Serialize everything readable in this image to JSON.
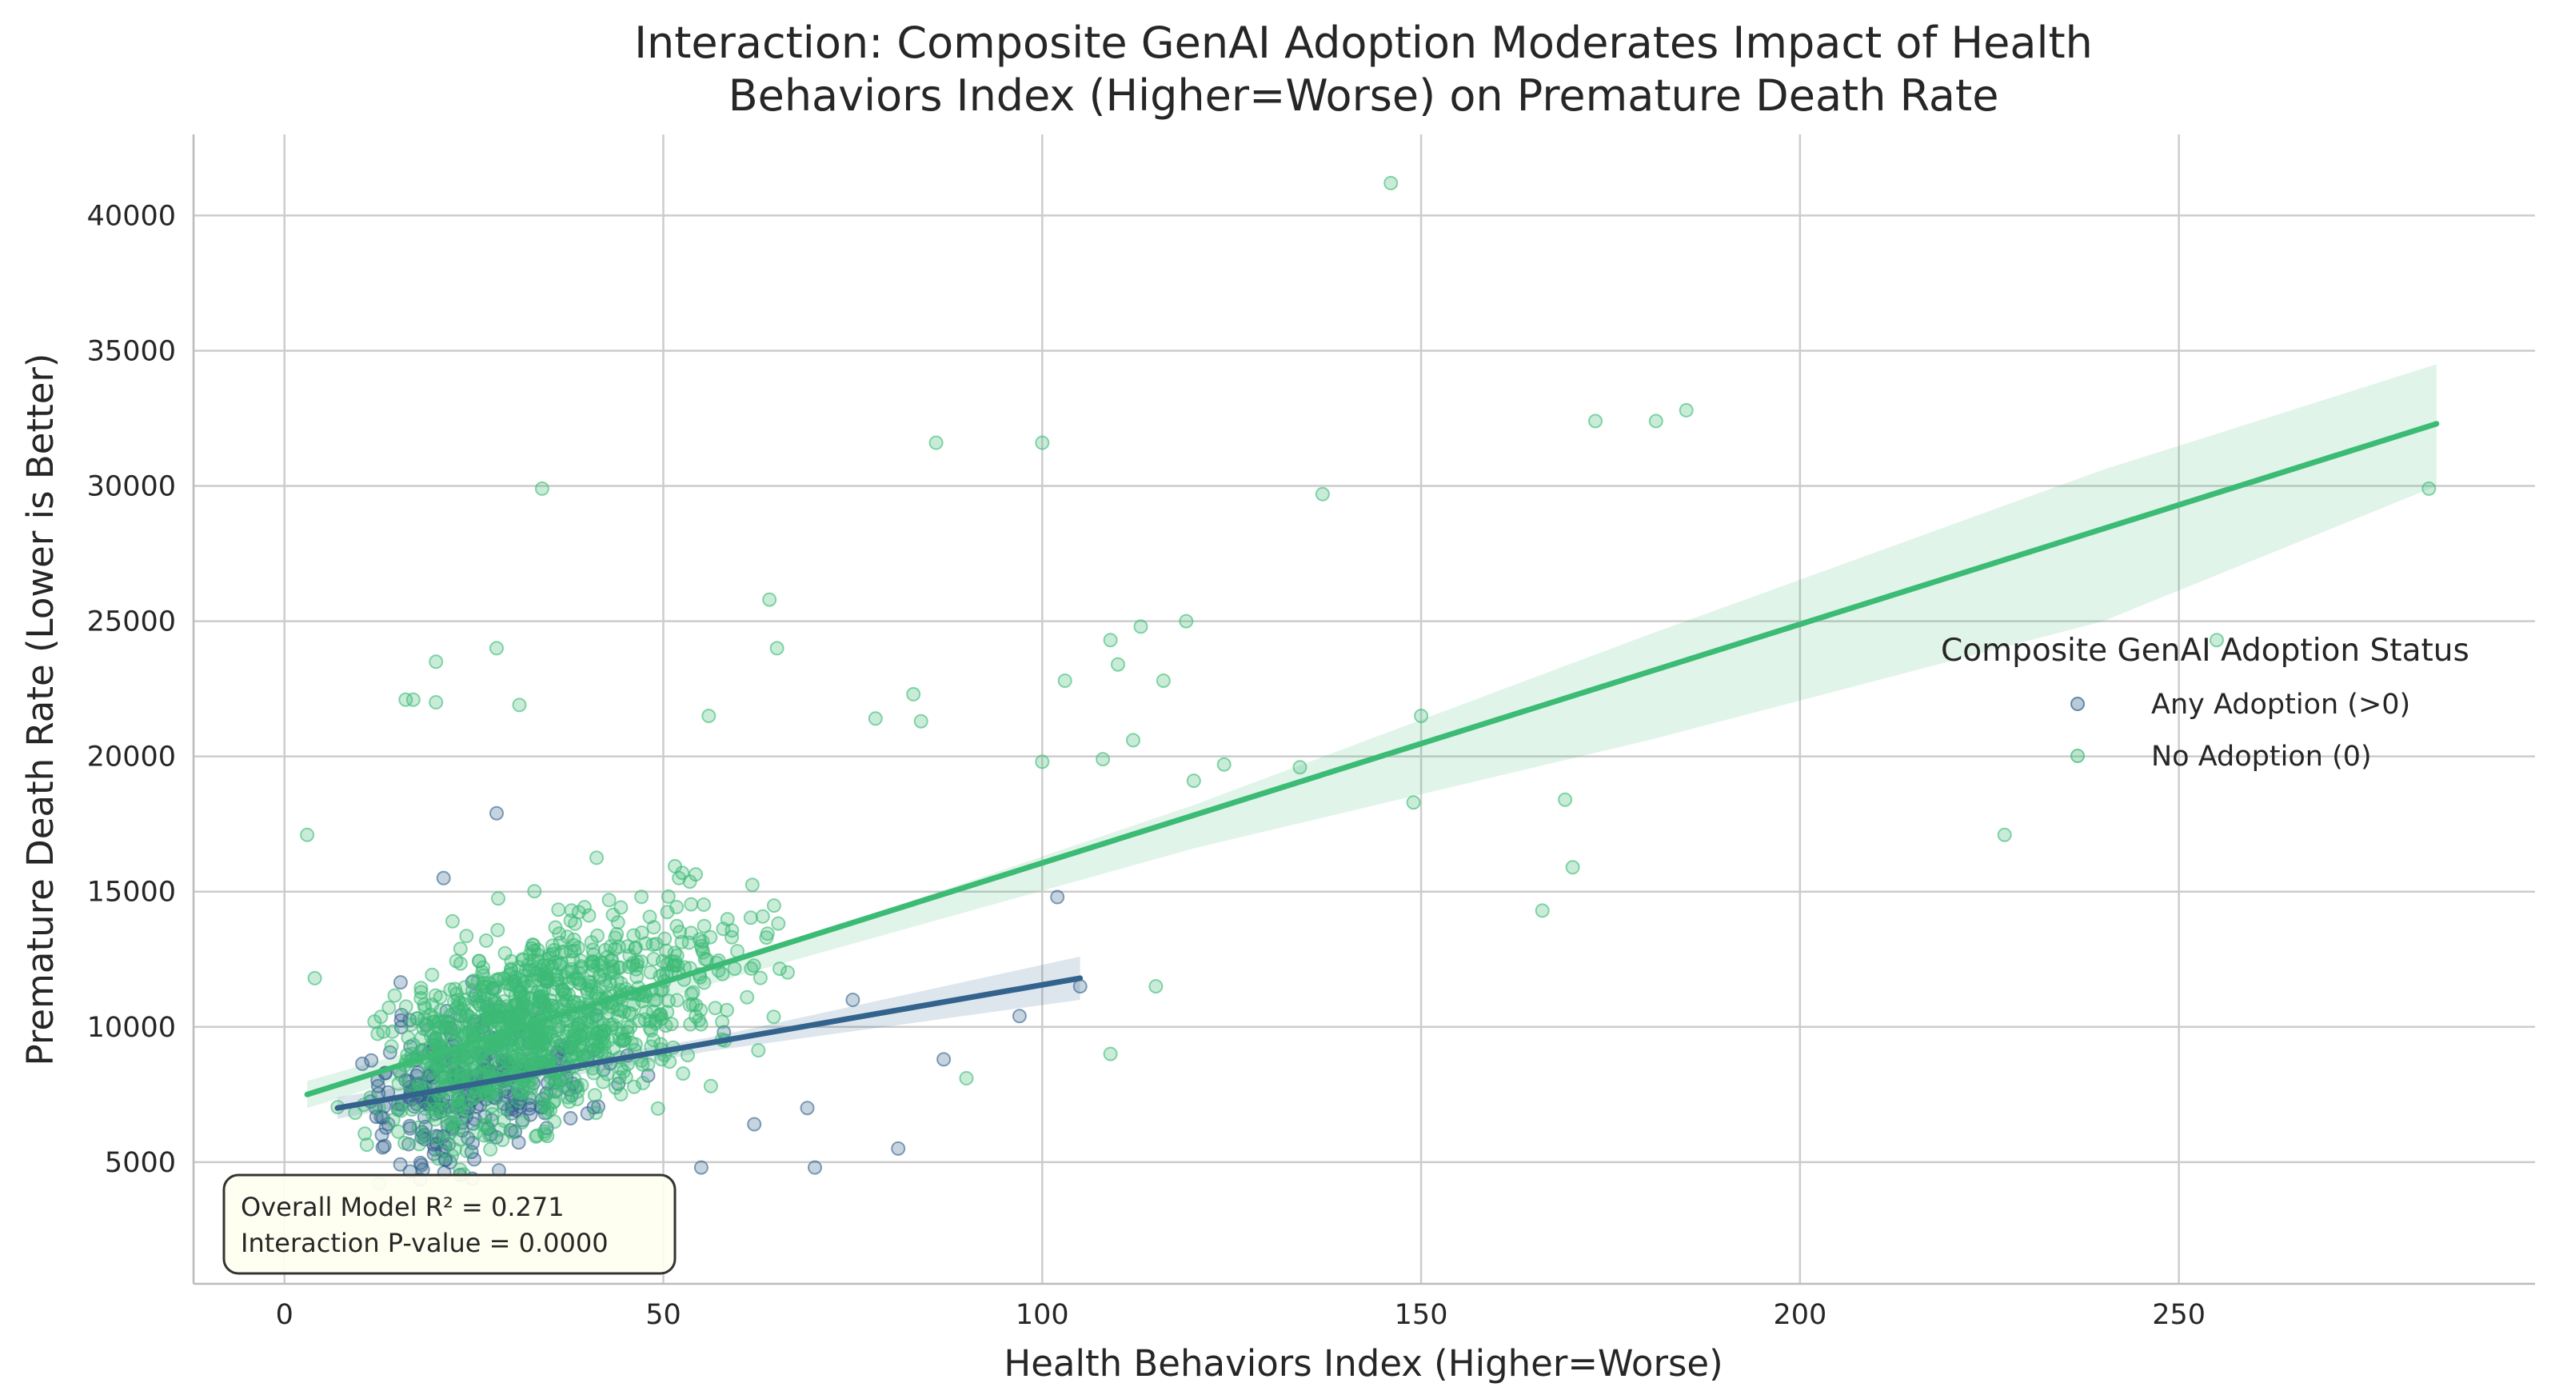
{
  "chart_data": {
    "type": "scatter",
    "title_lines": [
      "Interaction: Composite GenAI Adoption Moderates Impact of Health",
      "Behaviors Index (Higher=Worse) on Premature Death Rate"
    ],
    "xlabel": "Health Behaviors Index (Higher=Worse)",
    "ylabel": "Premature Death Rate (Lower is Better)",
    "xlim": [
      -12,
      297
    ],
    "ylim": [
      500,
      43000
    ],
    "x_ticks": [
      0,
      50,
      100,
      150,
      200,
      250
    ],
    "y_ticks": [
      5000,
      10000,
      15000,
      20000,
      25000,
      30000,
      35000,
      40000
    ],
    "grid": true,
    "legend": {
      "title": "Composite GenAI Adoption Status",
      "placement": "center-right",
      "entries": [
        "Any Adoption (>0)",
        "No Adoption (0)"
      ]
    },
    "annotation": [
      "Overall Model R² = 0.271",
      "Interaction P-value = 0.0000"
    ],
    "colors": {
      "any_adoption": "#33638d",
      "no_adoption": "#3cbb75"
    },
    "series": [
      {
        "name": "Any Adoption (>0)",
        "color": "#33638d",
        "fit_line": {
          "x": [
            7,
            105
          ],
          "y": [
            7000,
            11800
          ]
        },
        "ci_band": {
          "x": [
            7,
            56,
            105
          ],
          "upper": [
            7400,
            9600,
            12600
          ],
          "lower": [
            6600,
            9100,
            11000
          ]
        },
        "notable_points": [
          [
            28,
            17900
          ],
          [
            21,
            15500
          ],
          [
            102,
            14800
          ],
          [
            105,
            11500
          ],
          [
            97,
            10400
          ],
          [
            81,
            5500
          ],
          [
            70,
            4800
          ],
          [
            55,
            4800
          ],
          [
            62,
            6400
          ],
          [
            69,
            7000
          ],
          [
            87,
            8800
          ],
          [
            48,
            8200
          ],
          [
            40,
            6800
          ],
          [
            58,
            9800
          ],
          [
            75,
            11000
          ]
        ],
        "cluster": {
          "x_center": 22,
          "x_spread": 14,
          "y_center": 8600,
          "y_spread": 2400,
          "count": 320
        }
      },
      {
        "name": "No Adoption (0)",
        "color": "#3cbb75",
        "fit_line": {
          "x": [
            3,
            284
          ],
          "y": [
            7500,
            32300
          ]
        },
        "ci_band": {
          "x": [
            3,
            60,
            120,
            180,
            240,
            284
          ],
          "upper": [
            8000,
            12500,
            18200,
            24500,
            30600,
            34500
          ],
          "lower": [
            7000,
            11900,
            16600,
            20600,
            25000,
            30000
          ]
        },
        "notable_points": [
          [
            146,
            41200
          ],
          [
            185,
            32800
          ],
          [
            173,
            32400
          ],
          [
            181,
            32400
          ],
          [
            86,
            31600
          ],
          [
            100,
            31600
          ],
          [
            34,
            29900
          ],
          [
            137,
            29700
          ],
          [
            283,
            29900
          ],
          [
            64,
            25800
          ],
          [
            255,
            24300
          ],
          [
            119,
            25000
          ],
          [
            113,
            24800
          ],
          [
            109,
            24300
          ],
          [
            28,
            24000
          ],
          [
            65,
            24000
          ],
          [
            20,
            23500
          ],
          [
            110,
            23400
          ],
          [
            83,
            22300
          ],
          [
            103,
            22800
          ],
          [
            116,
            22800
          ],
          [
            16,
            22100
          ],
          [
            17,
            22100
          ],
          [
            20,
            22000
          ],
          [
            31,
            21900
          ],
          [
            150,
            21500
          ],
          [
            78,
            21400
          ],
          [
            84,
            21300
          ],
          [
            56,
            21500
          ],
          [
            112,
            20600
          ],
          [
            134,
            19600
          ],
          [
            124,
            19700
          ],
          [
            120,
            19100
          ],
          [
            100,
            19800
          ],
          [
            108,
            19900
          ],
          [
            169,
            18400
          ],
          [
            149,
            18300
          ],
          [
            227,
            17100
          ],
          [
            170,
            15900
          ],
          [
            166,
            14300
          ],
          [
            115,
            11500
          ],
          [
            109,
            9000
          ],
          [
            3,
            17100
          ],
          [
            90,
            8100
          ],
          [
            4,
            11800
          ]
        ],
        "cluster": {
          "x_center": 30,
          "x_spread": 22,
          "y_center": 10300,
          "y_spread": 3000,
          "count": 1050
        }
      }
    ]
  }
}
